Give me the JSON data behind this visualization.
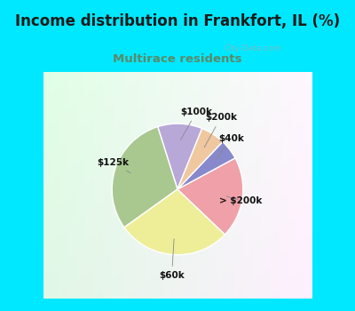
{
  "title": "Income distribution in Frankfort, IL (%)",
  "subtitle": "Multirace residents",
  "title_color": "#1a1a1a",
  "subtitle_color": "#5a8a6a",
  "background_cyan": "#00e8ff",
  "slices": [
    {
      "label": "$100k",
      "value": 11,
      "color": "#b8a8d8"
    },
    {
      "label": "$125k",
      "value": 30,
      "color": "#a8c890"
    },
    {
      "label": "$60k",
      "value": 28,
      "color": "#eeee99"
    },
    {
      "label": "> $200k",
      "value": 20,
      "color": "#f0a0a8"
    },
    {
      "label": "$40k",
      "value": 5,
      "color": "#8888cc"
    },
    {
      "label": "$200k",
      "value": 6,
      "color": "#f0c8a0"
    }
  ],
  "startangle": 68,
  "figsize": [
    4.0,
    3.5
  ],
  "dpi": 100,
  "title_fontsize": 12,
  "subtitle_fontsize": 9.5
}
